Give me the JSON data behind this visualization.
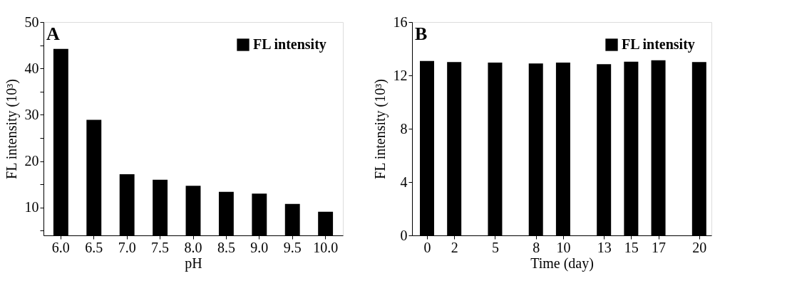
{
  "chart_data": [
    {
      "type": "bar",
      "annotations": [
        "A"
      ],
      "xlabel": "pH",
      "ylabel": "FL intensity (10³)",
      "categories": [
        "6.0",
        "6.5",
        "7.0",
        "7.5",
        "8.0",
        "8.5",
        "9.0",
        "9.5",
        "10.0"
      ],
      "series": [
        {
          "name": "FL intensity",
          "color": "#000000",
          "values": [
            44.2,
            28.9,
            17.2,
            16.0,
            14.7,
            13.4,
            13.0,
            10.8,
            9.1
          ]
        }
      ],
      "ylim": [
        4,
        50
      ],
      "yticks": [
        {
          "value": 5,
          "label": null
        },
        10,
        {
          "value": 15,
          "label": null
        },
        20,
        {
          "value": 25,
          "label": null
        },
        30,
        {
          "value": 35,
          "label": null
        },
        40,
        {
          "value": 45,
          "label": null
        },
        50
      ],
      "legend": "top right"
    },
    {
      "type": "bar",
      "annotations": [
        "B"
      ],
      "xlabel": "Time (day)",
      "ylabel": "FL intensity (10³)",
      "x": [
        0,
        2,
        5,
        8,
        10,
        13,
        15,
        17,
        20
      ],
      "series": [
        {
          "name": "FL intensity",
          "color": "#000000",
          "values": [
            13.08,
            13.0,
            12.96,
            12.89,
            12.96,
            12.84,
            13.03,
            13.14,
            13.0
          ]
        }
      ],
      "xlim": [
        -1.1,
        20.9
      ],
      "xticks": [
        0,
        2,
        5,
        8,
        10,
        13,
        15,
        17,
        20
      ],
      "ylim": [
        0,
        16
      ],
      "yticks": [
        0,
        4,
        8,
        12,
        16
      ],
      "legend": "top right"
    }
  ]
}
